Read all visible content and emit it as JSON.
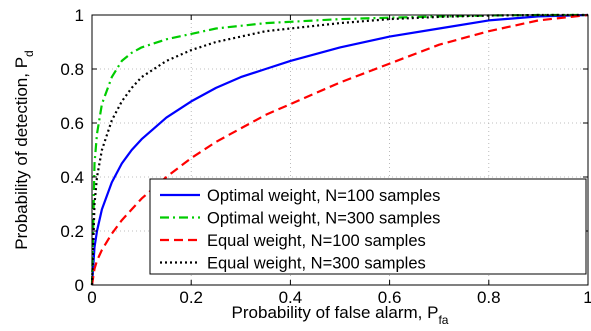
{
  "chart_data": {
    "type": "line",
    "xlabel": "Probability of false alarm, P",
    "xlabel_sub": "fa",
    "ylabel": "Probability of detection, P",
    "ylabel_sub": "d",
    "xlim": [
      0,
      1
    ],
    "ylim": [
      0,
      1
    ],
    "xticks": [
      "0",
      "0.2",
      "0.4",
      "0.6",
      "0.8",
      "1"
    ],
    "yticks": [
      "0",
      "0.2",
      "0.4",
      "0.6",
      "0.8",
      "1"
    ],
    "grid": true,
    "legend_position": "bottom-right",
    "series": [
      {
        "name": "Optimal weight, N=100 samples",
        "color": "#0000ff",
        "style": "solid",
        "x": [
          0,
          0.005,
          0.01,
          0.02,
          0.04,
          0.06,
          0.08,
          0.1,
          0.15,
          0.2,
          0.25,
          0.3,
          0.35,
          0.4,
          0.5,
          0.6,
          0.7,
          0.8,
          0.9,
          1.0
        ],
        "y": [
          0,
          0.14,
          0.2,
          0.28,
          0.38,
          0.45,
          0.5,
          0.54,
          0.62,
          0.68,
          0.73,
          0.77,
          0.8,
          0.83,
          0.88,
          0.92,
          0.95,
          0.98,
          0.995,
          1.0
        ]
      },
      {
        "name": "Optimal weight, N=300 samples",
        "color": "#00cc00",
        "style": "dashdot",
        "x": [
          0,
          0.005,
          0.01,
          0.02,
          0.04,
          0.06,
          0.08,
          0.1,
          0.15,
          0.2,
          0.25,
          0.3,
          0.35,
          0.4,
          0.5,
          0.6,
          0.7,
          0.8,
          0.9,
          1.0
        ],
        "y": [
          0,
          0.45,
          0.56,
          0.67,
          0.77,
          0.83,
          0.86,
          0.88,
          0.91,
          0.93,
          0.95,
          0.96,
          0.97,
          0.975,
          0.985,
          0.99,
          0.995,
          0.998,
          1.0,
          1.0
        ]
      },
      {
        "name": "Equal weight, N=100 samples",
        "color": "#ff0000",
        "style": "dashed",
        "x": [
          0,
          0.005,
          0.01,
          0.02,
          0.04,
          0.06,
          0.08,
          0.1,
          0.15,
          0.2,
          0.25,
          0.3,
          0.35,
          0.4,
          0.5,
          0.6,
          0.7,
          0.8,
          0.9,
          1.0
        ],
        "y": [
          0,
          0.06,
          0.09,
          0.13,
          0.19,
          0.24,
          0.28,
          0.32,
          0.4,
          0.47,
          0.53,
          0.58,
          0.63,
          0.67,
          0.75,
          0.82,
          0.89,
          0.94,
          0.98,
          1.0
        ]
      },
      {
        "name": "Equal weight, N=300 samples",
        "color": "#000000",
        "style": "dotted",
        "x": [
          0,
          0.005,
          0.01,
          0.02,
          0.04,
          0.06,
          0.08,
          0.1,
          0.15,
          0.2,
          0.25,
          0.3,
          0.35,
          0.4,
          0.5,
          0.6,
          0.7,
          0.8,
          0.9,
          1.0
        ],
        "y": [
          0,
          0.3,
          0.4,
          0.5,
          0.61,
          0.68,
          0.73,
          0.77,
          0.83,
          0.87,
          0.9,
          0.92,
          0.94,
          0.95,
          0.97,
          0.985,
          0.993,
          0.998,
          1.0,
          1.0
        ]
      }
    ]
  }
}
